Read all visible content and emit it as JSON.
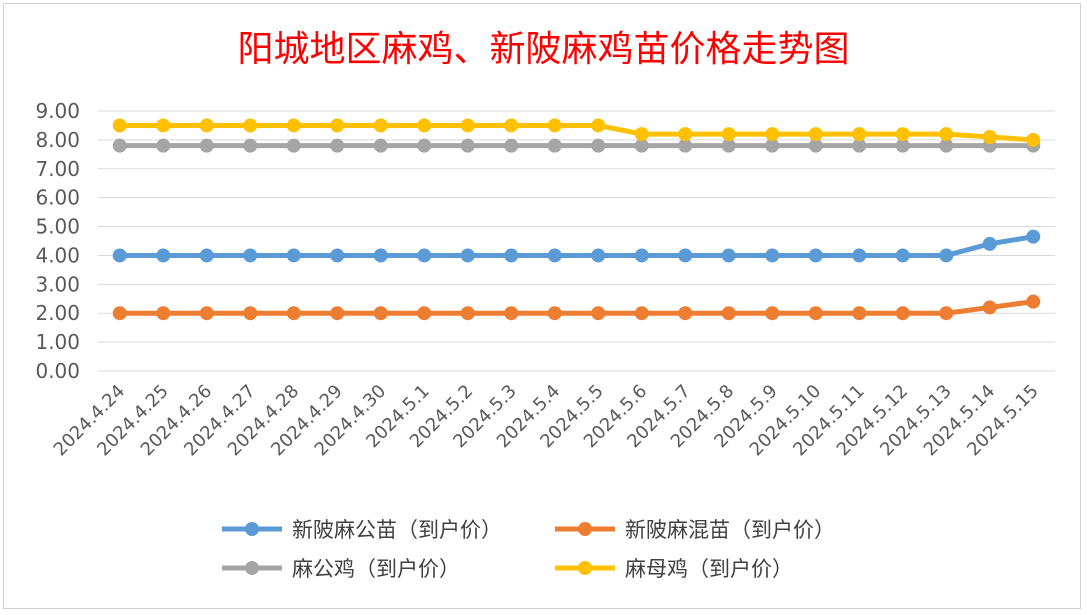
{
  "chart_data": {
    "type": "line",
    "title": "阳城地区麻鸡、新陂麻鸡苗价格走势图",
    "xlabel": "",
    "ylabel": "",
    "ylim": [
      0,
      9
    ],
    "yticks": [
      "0.00",
      "1.00",
      "2.00",
      "3.00",
      "4.00",
      "5.00",
      "6.00",
      "7.00",
      "8.00",
      "9.00"
    ],
    "grid": true,
    "legend_position": "bottom",
    "categories": [
      "2024.4.24",
      "2024.4.25",
      "2024.4.26",
      "2024.4.27",
      "2024.4.28",
      "2024.4.29",
      "2024.4.30",
      "2024.5.1",
      "2024.5.2",
      "2024.5.3",
      "2024.5.4",
      "2024.5.5",
      "2024.5.6",
      "2024.5.7",
      "2024.5.8",
      "2024.5.9",
      "2024.5.10",
      "2024.5.11",
      "2024.5.12",
      "2024.5.13",
      "2024.5.14",
      "2024.5.15"
    ],
    "series": [
      {
        "name": "新陂麻公苗（到户价）",
        "color": "#5b9bd5",
        "values": [
          4.0,
          4.0,
          4.0,
          4.0,
          4.0,
          4.0,
          4.0,
          4.0,
          4.0,
          4.0,
          4.0,
          4.0,
          4.0,
          4.0,
          4.0,
          4.0,
          4.0,
          4.0,
          4.0,
          4.0,
          4.4,
          4.65
        ]
      },
      {
        "name": "新陂麻混苗（到户价）",
        "color": "#ed7d31",
        "values": [
          2.0,
          2.0,
          2.0,
          2.0,
          2.0,
          2.0,
          2.0,
          2.0,
          2.0,
          2.0,
          2.0,
          2.0,
          2.0,
          2.0,
          2.0,
          2.0,
          2.0,
          2.0,
          2.0,
          2.0,
          2.2,
          2.4
        ]
      },
      {
        "name": "麻公鸡（到户价）",
        "color": "#a5a5a5",
        "values": [
          7.8,
          7.8,
          7.8,
          7.8,
          7.8,
          7.8,
          7.8,
          7.8,
          7.8,
          7.8,
          7.8,
          7.8,
          7.8,
          7.8,
          7.8,
          7.8,
          7.8,
          7.8,
          7.8,
          7.8,
          7.8,
          7.8
        ]
      },
      {
        "name": "麻母鸡（到户价）",
        "color": "#ffc000",
        "values": [
          8.5,
          8.5,
          8.5,
          8.5,
          8.5,
          8.5,
          8.5,
          8.5,
          8.5,
          8.5,
          8.5,
          8.5,
          8.2,
          8.2,
          8.2,
          8.2,
          8.2,
          8.2,
          8.2,
          8.2,
          8.1,
          8.0
        ]
      }
    ]
  }
}
